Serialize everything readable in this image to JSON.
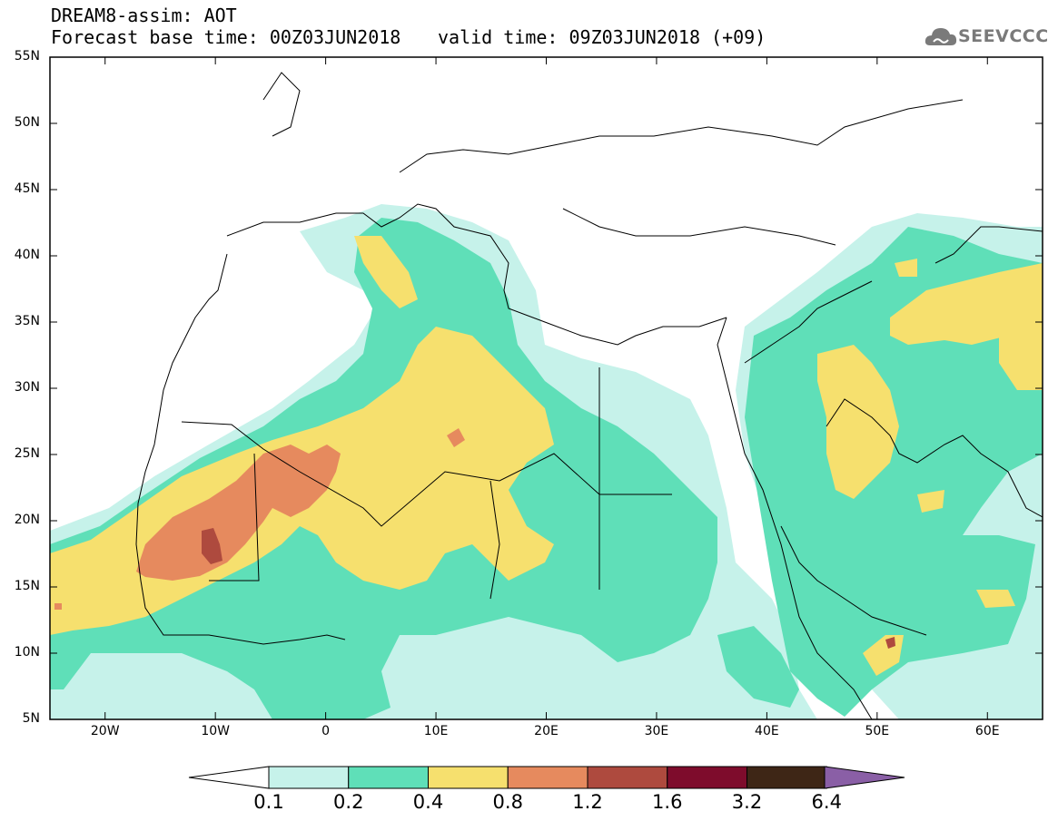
{
  "header": {
    "line1": "DREAM8-assim: AOT",
    "line2": "Forecast base time: 00Z03JUN2018",
    "line3": "valid time: 09Z03JUN2018 (+09)",
    "logo_text": "SEEVCCC",
    "logo_icon": "cloud-icon"
  },
  "map": {
    "lon_range": [
      -25,
      65
    ],
    "lat_range": [
      5,
      55
    ],
    "lat_ticks": [
      "55N",
      "50N",
      "45N",
      "40N",
      "35N",
      "30N",
      "25N",
      "20N",
      "15N",
      "10N",
      "5N"
    ],
    "lon_ticks": [
      "20W",
      "10W",
      "0",
      "10E",
      "20E",
      "30E",
      "40E",
      "50E",
      "60E"
    ]
  },
  "colorbar": {
    "labels": [
      "0.1",
      "0.2",
      "0.4",
      "0.8",
      "1.2",
      "1.6",
      "3.2",
      "6.4"
    ],
    "colors": [
      "#c6f2ea",
      "#5fdfb8",
      "#f6e06e",
      "#e68a5e",
      "#ae4a3e",
      "#7e0c2c",
      "#3e2616",
      "#8a5fa6"
    ]
  }
}
